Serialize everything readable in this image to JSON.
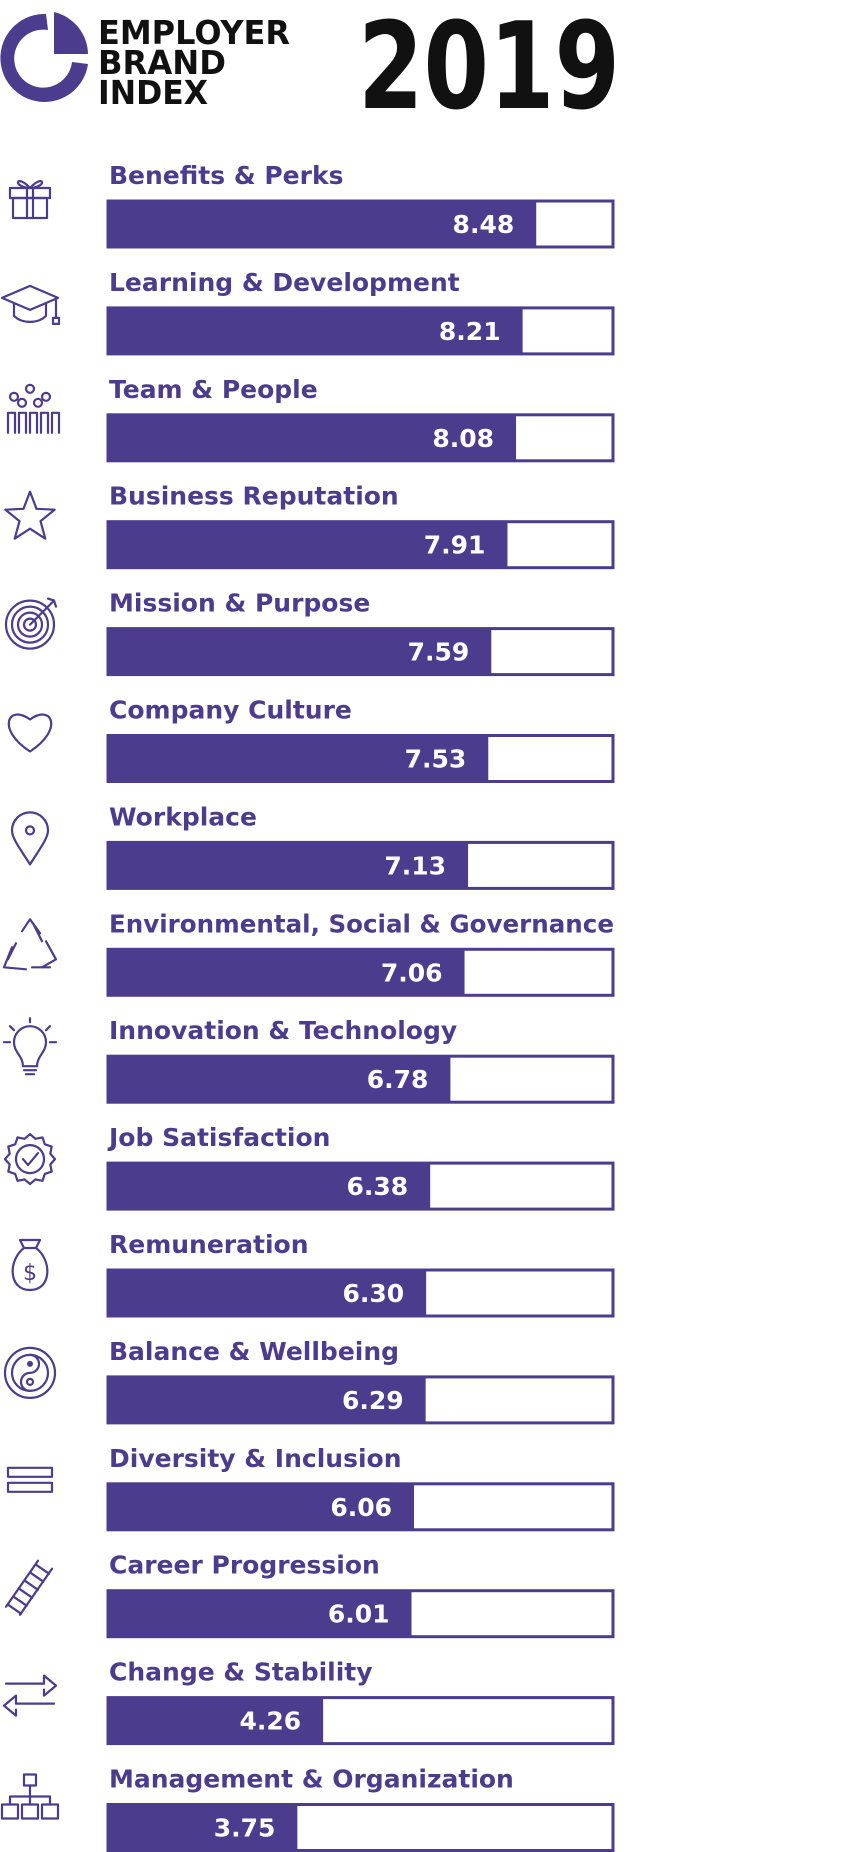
{
  "brand": {
    "line1": "EMPLOYER",
    "line2": "BRAND",
    "line3": "INDEX",
    "year": "2019"
  },
  "colors": {
    "bar": "#4b3c8e",
    "bar_border": "#4b3c8e",
    "label": "#4b3c8e",
    "value_text": "#ffffff",
    "brand_text": "#111111"
  },
  "chart_data": {
    "type": "bar",
    "orientation": "horizontal",
    "xlim": [
      0,
      10
    ],
    "grid": false,
    "categories": [
      "Benefits & Perks",
      "Learning & Development",
      "Team & People",
      "Business Reputation",
      "Mission & Purpose",
      "Company Culture",
      "Workplace",
      "Environmental, Social & Governance",
      "Innovation & Technology",
      "Job Satisfaction",
      "Remuneration",
      "Balance & Wellbeing",
      "Diversity & Inclusion",
      "Career Progression",
      "Change & Stability",
      "Management & Organization"
    ],
    "values": [
      8.48,
      8.21,
      8.08,
      7.91,
      7.59,
      7.53,
      7.13,
      7.06,
      6.78,
      6.38,
      6.3,
      6.29,
      6.06,
      6.01,
      4.26,
      3.75
    ],
    "value_labels": [
      "8.48",
      "8.21",
      "8.08",
      "7.91",
      "7.59",
      "7.53",
      "7.13",
      "7.06",
      "6.78",
      "6.38",
      "6.30",
      "6.29",
      "6.06",
      "6.01",
      "4.26",
      "3.75"
    ],
    "icons": [
      "gift-icon",
      "graduation-cap-icon",
      "people-group-icon",
      "star-icon",
      "target-icon",
      "heart-icon",
      "location-pin-icon",
      "recycle-icon",
      "lightbulb-icon",
      "badge-check-icon",
      "money-bag-icon",
      "yin-yang-icon",
      "equals-icon",
      "ladder-icon",
      "swap-arrows-icon",
      "org-chart-icon"
    ]
  }
}
